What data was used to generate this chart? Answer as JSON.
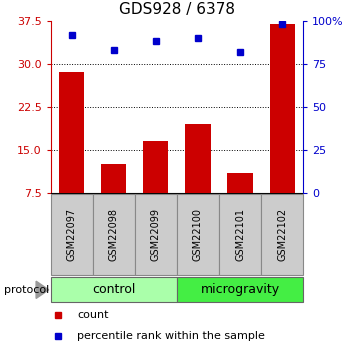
{
  "title": "GDS928 / 6378",
  "samples": [
    "GSM22097",
    "GSM22098",
    "GSM22099",
    "GSM22100",
    "GSM22101",
    "GSM22102"
  ],
  "count_values": [
    28.5,
    12.5,
    16.5,
    19.5,
    11.0,
    37.0
  ],
  "percentile_values": [
    92,
    83,
    88,
    90,
    82,
    98
  ],
  "bar_color": "#cc0000",
  "dot_color": "#0000cc",
  "left_yticks": [
    7.5,
    15.0,
    22.5,
    30.0,
    37.5
  ],
  "right_yticks": [
    0,
    25,
    50,
    75,
    100
  ],
  "right_ytick_labels": [
    "0",
    "25",
    "50",
    "75",
    "100%"
  ],
  "ylim_left": [
    7.5,
    37.5
  ],
  "ylim_right": [
    0,
    100
  ],
  "groups": [
    {
      "label": "control",
      "indices": [
        0,
        1,
        2
      ],
      "color": "#aaffaa"
    },
    {
      "label": "microgravity",
      "indices": [
        3,
        4,
        5
      ],
      "color": "#44ee44"
    }
  ],
  "protocol_label": "protocol",
  "legend_items": [
    {
      "label": "count",
      "color": "#cc0000"
    },
    {
      "label": "percentile rank within the sample",
      "color": "#0000cc"
    }
  ],
  "grid_yticks": [
    15.0,
    22.5,
    30.0
  ],
  "sample_box_color": "#cccccc",
  "title_fontsize": 11,
  "tick_fontsize": 8,
  "sample_fontsize": 7,
  "group_fontsize": 9,
  "legend_fontsize": 8
}
